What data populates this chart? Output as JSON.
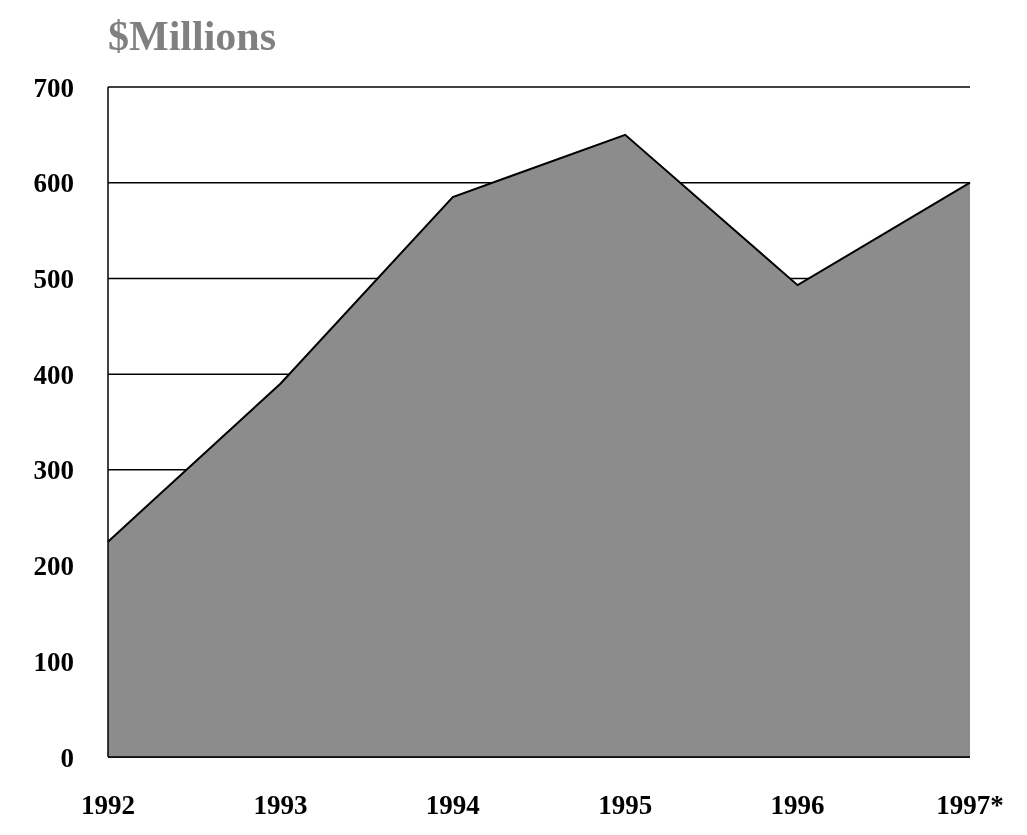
{
  "chart_data": {
    "type": "area",
    "title": "$Millions",
    "categories": [
      "1992",
      "1993",
      "1994",
      "1995",
      "1996",
      "1997*"
    ],
    "series": [
      {
        "color": "#8c8c8c",
        "values": [
          225,
          390,
          585,
          650,
          493,
          600
        ]
      }
    ],
    "ylim": [
      0,
      700
    ],
    "yticks": [
      0,
      100,
      200,
      300,
      400,
      500,
      600,
      700
    ],
    "grid": "y",
    "legend": false
  }
}
